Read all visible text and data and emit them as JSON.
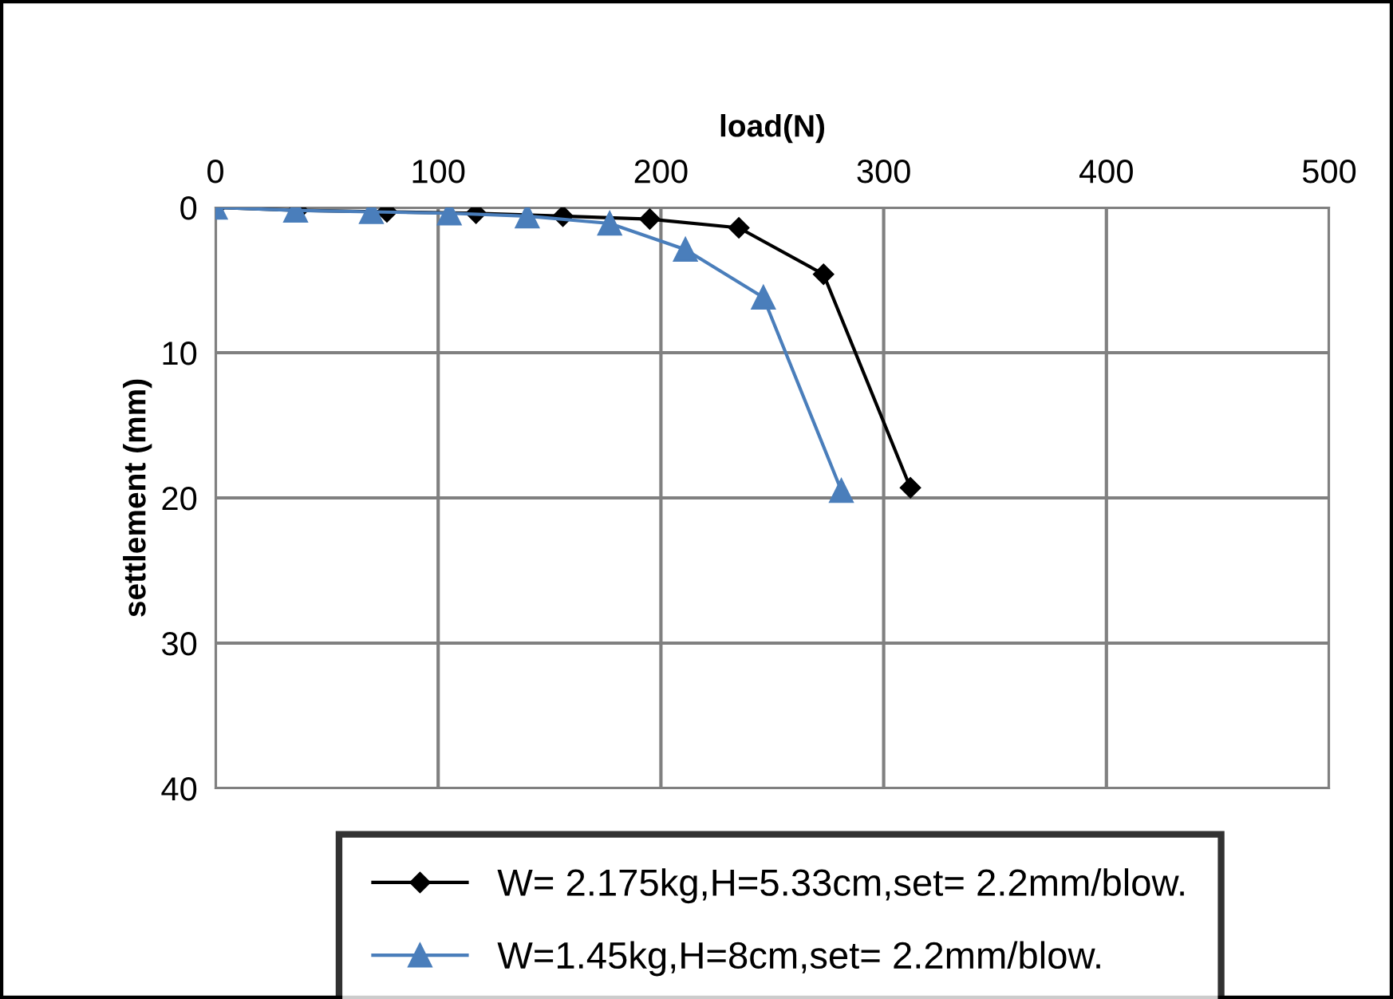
{
  "chart_data": {
    "type": "line",
    "xlabel": "load(N)",
    "ylabel": "settlement (mm)",
    "xlim": [
      0,
      500
    ],
    "xticks": [
      0,
      100,
      200,
      300,
      400,
      500
    ],
    "ylim": [
      40,
      0
    ],
    "yticks": [
      0,
      10,
      20,
      30,
      40
    ],
    "grid": true,
    "legend": "bottom",
    "line_style": "solid",
    "series": [
      {
        "name": "W= 2.175kg,H=5.33cm,set= 2.2mm/blow.",
        "color": "#000000",
        "marker": "diamond",
        "x": [
          0,
          37,
          77,
          117,
          156,
          195,
          235,
          273,
          312
        ],
        "values": [
          0,
          0.2,
          0.3,
          0.4,
          0.6,
          0.8,
          1.4,
          4.6,
          19.3
        ]
      },
      {
        "name": "W=1.45kg,H=8cm,set= 2.2mm/blow.",
        "color": "#4a7ebb",
        "marker": "triangle",
        "x": [
          0,
          36,
          70,
          105,
          140,
          177,
          211,
          246,
          281
        ],
        "values": [
          0,
          0.2,
          0.3,
          0.4,
          0.6,
          1.1,
          2.9,
          6.2,
          19.5
        ]
      }
    ]
  }
}
